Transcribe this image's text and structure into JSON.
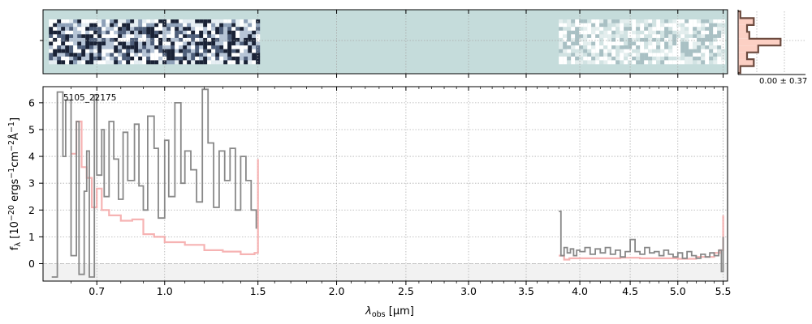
{
  "chart_data": [
    {
      "type": "heatmap",
      "description_role": "2D spectrum panel",
      "x_scale": "sqrt",
      "xlim": [
        0.5,
        5.55
      ],
      "colors": {
        "background": "#c5dcdb"
      },
      "blocks": [
        {
          "x_range": [
            0.52,
            1.5
          ],
          "style": "high-contrast",
          "rows": 12
        },
        {
          "x_range": [
            3.8,
            5.5
          ],
          "style": "faint",
          "rows": 12
        }
      ]
    },
    {
      "type": "line",
      "x_scale": "sqrt",
      "xlim": [
        0.5,
        5.55
      ],
      "ylim": [
        -0.65,
        6.6
      ],
      "xlabel": "λobs [μm]",
      "ylabel": "fλ [10⁻²⁰ ergs⁻¹cm⁻²Å⁻¹]",
      "xlabel_parts": {
        "lambda": "λ",
        "sub": "obs",
        "unit": " [μm]"
      },
      "ylabel_parts": {
        "f": "f",
        "sub": "λ",
        "pre": " [10",
        "exp1": "−20",
        "mid1": " ergs",
        "exp2": "−1",
        "mid2": "cm",
        "exp3": "−2",
        "mid3": "Å",
        "exp4": "−1",
        "end": "]"
      },
      "x_ticks": [
        0.7,
        1.0,
        1.5,
        2.0,
        2.5,
        3.0,
        3.5,
        4.0,
        4.5,
        5.0,
        5.5
      ],
      "x_tick_labels": [
        "0.7",
        "1.0",
        "1.5",
        "2.0",
        "2.5",
        "3.0",
        "3.5",
        "4.0",
        "4.5",
        "5.0",
        "5.5"
      ],
      "y_ticks": [
        0,
        1,
        2,
        3,
        4,
        5,
        6
      ],
      "y_tick_labels": [
        "0",
        "1",
        "2",
        "3",
        "4",
        "5",
        "6"
      ],
      "annotation": "5105_22175",
      "grid": true,
      "colors": {
        "data": "#888888",
        "model": "#f4a6a6",
        "model_fill": "#f8c9c4",
        "zero_band": "#f2f2f2"
      },
      "series": [
        {
          "style": "data",
          "segments": [
            {
              "x": [
                0.53,
                0.55,
                0.57,
                0.58,
                0.6,
                0.62,
                0.63,
                0.65,
                0.66,
                0.67,
                0.69,
                0.7,
                0.72,
                0.73,
                0.75,
                0.77,
                0.79,
                0.81,
                0.83,
                0.86,
                0.88,
                0.9,
                0.92,
                0.95,
                0.97,
                1.0,
                1.02,
                1.05,
                1.08,
                1.1,
                1.13,
                1.16,
                1.19,
                1.22,
                1.25,
                1.28,
                1.31,
                1.34,
                1.37,
                1.4,
                1.43,
                1.46,
                1.49
              ],
              "y": [
                -0.5,
                6.4,
                4.0,
                6.1,
                0.3,
                5.3,
                -0.4,
                2.7,
                4.2,
                -0.5,
                6.3,
                3.3,
                5.0,
                2.5,
                5.3,
                3.9,
                2.4,
                4.9,
                3.1,
                5.2,
                2.9,
                2.0,
                5.5,
                4.3,
                1.7,
                4.6,
                2.5,
                6.0,
                3.0,
                4.2,
                3.5,
                2.3,
                6.5,
                4.5,
                2.1,
                4.2,
                3.1,
                4.3,
                2.0,
                4.0,
                3.1,
                2.0,
                1.3
              ]
            },
            {
              "x": [
                3.8,
                3.82,
                3.85,
                3.88,
                3.91,
                3.94,
                3.97,
                4.0,
                4.05,
                4.1,
                4.15,
                4.2,
                4.25,
                4.3,
                4.35,
                4.4,
                4.45,
                4.5,
                4.55,
                4.6,
                4.65,
                4.7,
                4.75,
                4.8,
                4.85,
                4.9,
                4.95,
                5.0,
                5.05,
                5.1,
                5.15,
                5.2,
                5.25,
                5.3,
                5.35,
                5.4,
                5.45,
                5.48,
                5.5
              ],
              "y": [
                1.95,
                0.3,
                0.6,
                0.4,
                0.55,
                0.3,
                0.5,
                0.45,
                0.6,
                0.35,
                0.55,
                0.4,
                0.6,
                0.35,
                0.5,
                0.25,
                0.45,
                0.9,
                0.45,
                0.35,
                0.6,
                0.4,
                0.45,
                0.3,
                0.5,
                0.35,
                0.25,
                0.4,
                0.2,
                0.45,
                0.3,
                0.2,
                0.35,
                0.25,
                0.4,
                0.3,
                0.5,
                -0.3,
                1.0
              ]
            }
          ]
        },
        {
          "style": "model",
          "segments": [
            {
              "x": [
                0.6,
                0.62,
                0.64,
                0.66,
                0.68,
                0.7,
                0.72,
                0.75,
                0.8,
                0.85,
                0.9,
                0.95,
                1.0,
                1.1,
                1.2,
                1.3,
                1.4,
                1.48,
                1.5
              ],
              "y": [
                4.1,
                5.3,
                3.6,
                3.2,
                2.1,
                2.8,
                2.0,
                1.8,
                1.6,
                1.65,
                1.1,
                1.0,
                0.8,
                0.7,
                0.5,
                0.45,
                0.35,
                0.4,
                3.9
              ]
            },
            {
              "x": [
                3.8,
                3.85,
                3.9,
                4.0,
                4.2,
                4.4,
                4.6,
                4.8,
                5.0,
                5.2,
                5.4,
                5.46,
                5.5
              ],
              "y": [
                0.3,
                0.15,
                0.2,
                0.2,
                0.2,
                0.22,
                0.2,
                0.2,
                0.18,
                0.25,
                0.4,
                0.5,
                1.8
              ]
            }
          ]
        }
      ]
    },
    {
      "type": "histogram",
      "role": "residual distribution",
      "label": "0.00 ± 0.37",
      "colors": {
        "fill": "#fcd0c4",
        "edge": "#6b4a3e"
      },
      "bins": [
        -1.2,
        -0.9,
        -0.6,
        -0.3,
        0.0,
        0.3,
        0.6,
        0.9,
        1.2
      ],
      "values": [
        0.05,
        0.35,
        0.2,
        0.25,
        0.95,
        0.45,
        0.2,
        0.35,
        0.05
      ]
    }
  ]
}
